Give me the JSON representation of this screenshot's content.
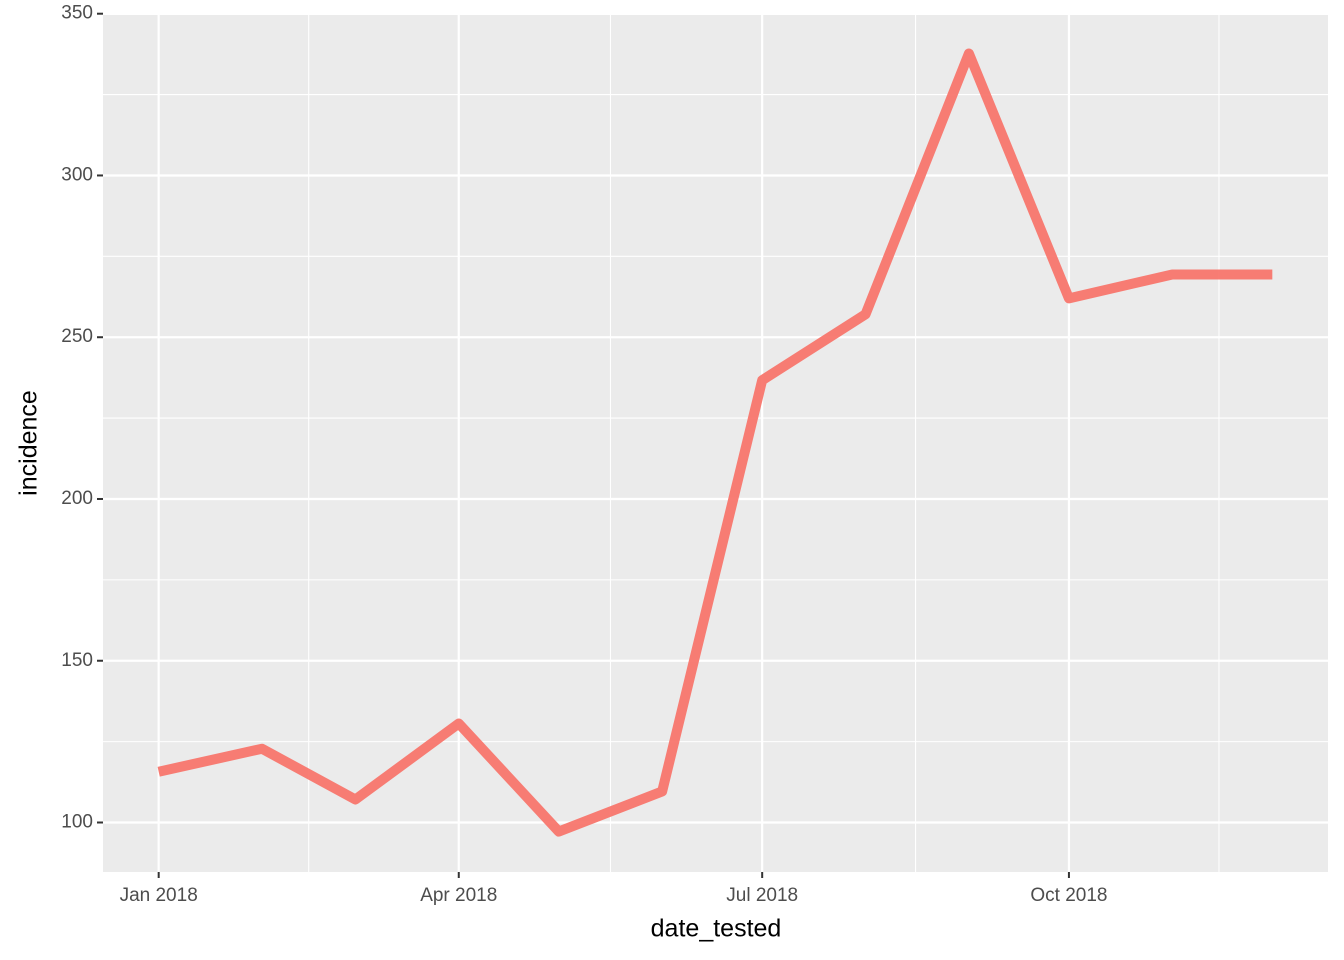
{
  "chart_data": {
    "type": "line",
    "x_label": "date_tested",
    "y_label": "incidence",
    "x": [
      "2018-01",
      "2018-02",
      "2018-03",
      "2018-04",
      "2018-05",
      "2018-06",
      "2018-07",
      "2018-08",
      "2018-09",
      "2018-10",
      "2018-11",
      "2018-12"
    ],
    "series": [
      {
        "name": "incidence",
        "color": "#F8766D",
        "values": [
          115.7,
          122.8,
          107.1,
          130.6,
          97.2,
          109.6,
          236.7,
          257.1,
          337.7,
          262,
          269.4,
          269.4
        ]
      }
    ],
    "xticks": [
      {
        "value": "2018-01",
        "label": "Jan 2018"
      },
      {
        "value": "2018-04",
        "label": "Apr 2018"
      },
      {
        "value": "2018-07",
        "label": "Jul 2018"
      },
      {
        "value": "2018-10",
        "label": "Oct 2018"
      }
    ],
    "ylim": [
      84.7,
      349.6
    ],
    "yticks": [
      100,
      150,
      200,
      250,
      300,
      350
    ],
    "grid": true
  }
}
